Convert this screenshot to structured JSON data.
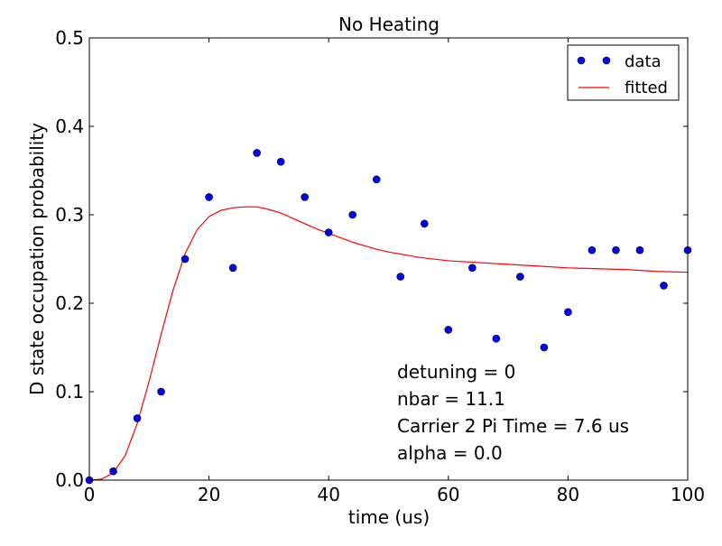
{
  "chart_data": {
    "type": "scatter",
    "title": "No Heating",
    "xlabel": "time (us)",
    "ylabel": "D state occupation probability",
    "xlim": [
      0,
      100
    ],
    "ylim": [
      0,
      0.5
    ],
    "xticks": [
      0,
      20,
      40,
      60,
      80,
      100
    ],
    "yticks": [
      0.0,
      0.1,
      0.2,
      0.3,
      0.4,
      0.5
    ],
    "xtick_labels": [
      "0",
      "20",
      "40",
      "60",
      "80",
      "100"
    ],
    "ytick_labels": [
      "0.0",
      "0.1",
      "0.2",
      "0.3",
      "0.4",
      "0.5"
    ],
    "grid": false,
    "legend": {
      "position": "top-right",
      "entries": [
        {
          "label": "data",
          "style": "markers",
          "color": "#0000ff"
        },
        {
          "label": "fitted",
          "style": "line",
          "color": "#ff0000"
        }
      ]
    },
    "series": [
      {
        "name": "data",
        "kind": "markers",
        "color": "#0000ff",
        "x": [
          0,
          4,
          8,
          12,
          16,
          20,
          24,
          28,
          32,
          36,
          40,
          44,
          48,
          52,
          56,
          60,
          64,
          68,
          72,
          76,
          80,
          84,
          88,
          92,
          96,
          100
        ],
        "y": [
          0.0,
          0.01,
          0.07,
          0.1,
          0.25,
          0.32,
          0.24,
          0.37,
          0.36,
          0.32,
          0.28,
          0.3,
          0.34,
          0.23,
          0.29,
          0.17,
          0.24,
          0.16,
          0.23,
          0.15,
          0.19,
          0.26,
          0.26,
          0.26,
          0.22,
          0.26
        ]
      },
      {
        "name": "fitted",
        "kind": "line",
        "color": "#ff0000",
        "x": [
          0,
          2,
          4,
          6,
          8,
          10,
          12,
          14,
          16,
          18,
          20,
          22,
          24,
          26,
          28,
          30,
          32,
          34,
          36,
          38,
          40,
          42,
          44,
          46,
          48,
          50,
          55,
          60,
          65,
          70,
          75,
          80,
          85,
          90,
          95,
          100
        ],
        "y": [
          0.0,
          0.001,
          0.008,
          0.028,
          0.064,
          0.112,
          0.165,
          0.215,
          0.256,
          0.283,
          0.298,
          0.305,
          0.308,
          0.309,
          0.309,
          0.306,
          0.302,
          0.296,
          0.29,
          0.284,
          0.279,
          0.274,
          0.269,
          0.265,
          0.261,
          0.258,
          0.252,
          0.248,
          0.246,
          0.244,
          0.242,
          0.24,
          0.239,
          0.238,
          0.236,
          0.235
        ]
      }
    ],
    "annotations": [
      "detuning = 0",
      "nbar = 11.1",
      "Carrier 2 Pi Time = 7.6 us",
      "alpha = 0.0"
    ]
  }
}
